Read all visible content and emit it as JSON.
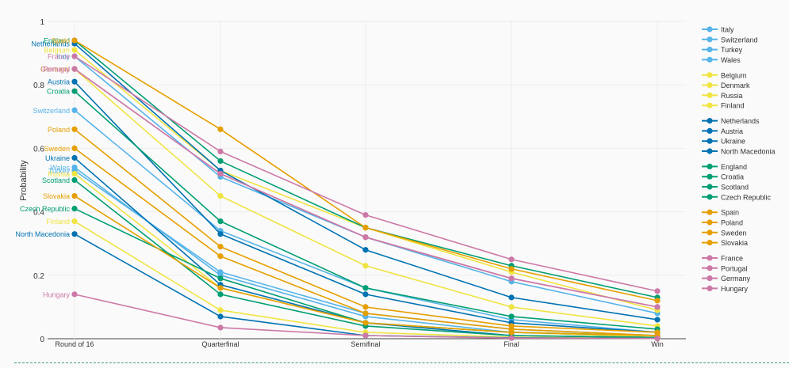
{
  "chart_data": {
    "type": "line",
    "ylabel": "Probability",
    "xlabel": "",
    "title": "",
    "ylim": [
      0,
      1
    ],
    "grid": true,
    "legend_position": "right",
    "y_ticks": [
      {
        "value": 0,
        "label": "0"
      },
      {
        "value": 0.2,
        "label": "0.2"
      },
      {
        "value": 0.4,
        "label": "0.4"
      },
      {
        "value": 0.6,
        "label": "0.6"
      },
      {
        "value": 0.8,
        "label": "0.8"
      },
      {
        "value": 1,
        "label": "1"
      }
    ],
    "categories": [
      "Round of 16",
      "Quarterfinal",
      "Semifinal",
      "Final",
      "Win"
    ],
    "groups": [
      {
        "color": "#56b4e9",
        "teams": [
          "Italy",
          "Switzerland",
          "Turkey",
          "Wales"
        ]
      },
      {
        "color": "#f0e442",
        "teams": [
          "Belgium",
          "Denmark",
          "Russia",
          "Finland"
        ]
      },
      {
        "color": "#0072b2",
        "teams": [
          "Netherlands",
          "Austria",
          "Ukraine",
          "North Macedonia"
        ]
      },
      {
        "color": "#009e73",
        "teams": [
          "England",
          "Croatia",
          "Scotland",
          "Czech Republic"
        ]
      },
      {
        "color": "#e69f00",
        "teams": [
          "Spain",
          "Poland",
          "Sweden",
          "Slovakia"
        ]
      },
      {
        "color": "#cc79a7",
        "teams": [
          "France",
          "Portugal",
          "Germany",
          "Hungary"
        ]
      }
    ],
    "series": [
      {
        "name": "Italy",
        "color": "#56b4e9",
        "values": [
          0.89,
          0.51,
          0.32,
          0.18,
          0.08
        ]
      },
      {
        "name": "Switzerland",
        "color": "#56b4e9",
        "values": [
          0.72,
          0.34,
          0.16,
          0.06,
          0.02
        ]
      },
      {
        "name": "Turkey",
        "color": "#56b4e9",
        "values": [
          0.53,
          0.21,
          0.08,
          0.03,
          0.01
        ]
      },
      {
        "name": "Wales",
        "color": "#56b4e9",
        "values": [
          0.54,
          0.2,
          0.07,
          0.02,
          0.01
        ]
      },
      {
        "name": "Belgium",
        "color": "#f0e442",
        "values": [
          0.91,
          0.53,
          0.35,
          0.21,
          0.09
        ]
      },
      {
        "name": "Denmark",
        "color": "#f0e442",
        "values": [
          0.85,
          0.45,
          0.23,
          0.1,
          0.04
        ]
      },
      {
        "name": "Russia",
        "color": "#f0e442",
        "values": [
          0.52,
          0.16,
          0.05,
          0.02,
          0.005
        ]
      },
      {
        "name": "Finland",
        "color": "#f0e442",
        "values": [
          0.37,
          0.09,
          0.02,
          0.005,
          0.001
        ]
      },
      {
        "name": "Netherlands",
        "color": "#0072b2",
        "values": [
          0.93,
          0.53,
          0.28,
          0.13,
          0.06
        ]
      },
      {
        "name": "Austria",
        "color": "#0072b2",
        "values": [
          0.81,
          0.33,
          0.14,
          0.05,
          0.02
        ]
      },
      {
        "name": "Ukraine",
        "color": "#0072b2",
        "values": [
          0.57,
          0.17,
          0.05,
          0.01,
          0.004
        ]
      },
      {
        "name": "North Macedonia",
        "color": "#0072b2",
        "values": [
          0.33,
          0.07,
          0.01,
          0.003,
          0.001
        ]
      },
      {
        "name": "England",
        "color": "#009e73",
        "values": [
          0.94,
          0.56,
          0.35,
          0.23,
          0.13
        ]
      },
      {
        "name": "Croatia",
        "color": "#009e73",
        "values": [
          0.78,
          0.37,
          0.16,
          0.07,
          0.03
        ]
      },
      {
        "name": "Scotland",
        "color": "#009e73",
        "values": [
          0.5,
          0.14,
          0.04,
          0.01,
          0.004
        ]
      },
      {
        "name": "Czech Republic",
        "color": "#009e73",
        "values": [
          0.41,
          0.19,
          0.05,
          0.02,
          0.01
        ]
      },
      {
        "name": "Spain",
        "color": "#e69f00",
        "values": [
          0.94,
          0.66,
          0.35,
          0.22,
          0.12
        ]
      },
      {
        "name": "Poland",
        "color": "#e69f00",
        "values": [
          0.66,
          0.29,
          0.1,
          0.04,
          0.02
        ]
      },
      {
        "name": "Sweden",
        "color": "#e69f00",
        "values": [
          0.6,
          0.26,
          0.08,
          0.03,
          0.01
        ]
      },
      {
        "name": "Slovakia",
        "color": "#e69f00",
        "values": [
          0.45,
          0.16,
          0.05,
          0.02,
          0.01
        ]
      },
      {
        "name": "France",
        "color": "#cc79a7",
        "values": [
          0.89,
          0.59,
          0.39,
          0.25,
          0.15
        ]
      },
      {
        "name": "Portugal",
        "color": "#cc79a7",
        "values": [
          0.85,
          0.52,
          0.32,
          0.19,
          0.1
        ]
      },
      {
        "name": "Germany",
        "color": "#cc79a7",
        "values": [
          0.85,
          0.52,
          0.32,
          0.19,
          0.1
        ]
      },
      {
        "name": "Hungary",
        "color": "#cc79a7",
        "values": [
          0.14,
          0.035,
          0.01,
          0.002,
          0.001
        ]
      }
    ]
  }
}
